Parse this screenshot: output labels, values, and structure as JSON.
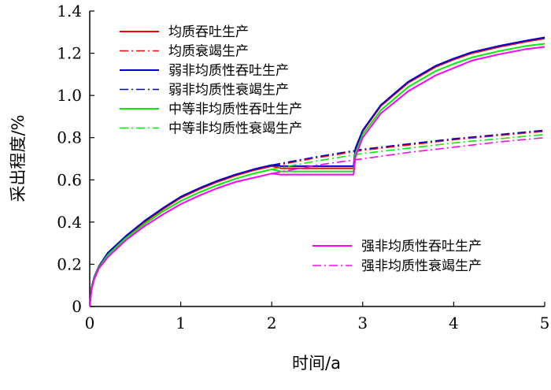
{
  "chart_data": {
    "type": "line",
    "xlabel": "时间/a",
    "ylabel": "采出程度/%",
    "xlim": [
      0,
      5
    ],
    "ylim": [
      0,
      1.4
    ],
    "x_ticks": [
      "0",
      "1",
      "2",
      "3",
      "4",
      "5"
    ],
    "y_ticks": [
      "0",
      "0.2",
      "0.4",
      "0.6",
      "0.8",
      "1.0",
      "1.2",
      "1.4"
    ],
    "grid": false,
    "legend_placement": [
      "top-left",
      "bottom-right"
    ],
    "series": [
      {
        "name": "均质吞吐生产",
        "color": "#ff0000",
        "dash": "solid",
        "x": [
          0,
          0.02,
          0.05,
          0.1,
          0.2,
          0.4,
          0.6,
          0.8,
          1.0,
          1.2,
          1.4,
          1.6,
          1.8,
          2.0,
          2.1,
          2.5,
          2.9,
          2.92,
          3.0,
          3.2,
          3.5,
          3.8,
          4.0,
          4.2,
          4.5,
          4.8,
          5.0
        ],
        "y": [
          0,
          0.09,
          0.14,
          0.19,
          0.25,
          0.33,
          0.4,
          0.46,
          0.515,
          0.555,
          0.59,
          0.62,
          0.645,
          0.665,
          0.655,
          0.655,
          0.655,
          0.74,
          0.83,
          0.95,
          1.06,
          1.135,
          1.17,
          1.2,
          1.23,
          1.255,
          1.27
        ]
      },
      {
        "name": "均质衰竭生产",
        "color": "#ff0000",
        "dash": "dashdot",
        "x": [
          2.0,
          2.5,
          3.0,
          3.5,
          4.0,
          4.5,
          5.0
        ],
        "y": [
          0.665,
          0.705,
          0.74,
          0.765,
          0.79,
          0.81,
          0.83
        ]
      },
      {
        "name": "弱非均质性吞吐生产",
        "color": "#0000cc",
        "dash": "solid",
        "x": [
          0,
          0.02,
          0.05,
          0.1,
          0.2,
          0.4,
          0.6,
          0.8,
          1.0,
          1.2,
          1.4,
          1.6,
          1.8,
          2.0,
          2.1,
          2.5,
          2.9,
          2.92,
          3.0,
          3.2,
          3.5,
          3.8,
          4.0,
          4.2,
          4.5,
          4.8,
          5.0
        ],
        "y": [
          0,
          0.09,
          0.14,
          0.19,
          0.255,
          0.335,
          0.405,
          0.465,
          0.52,
          0.56,
          0.595,
          0.625,
          0.65,
          0.67,
          0.665,
          0.665,
          0.665,
          0.75,
          0.835,
          0.955,
          1.065,
          1.14,
          1.175,
          1.205,
          1.235,
          1.26,
          1.275
        ]
      },
      {
        "name": "弱非均质性衰竭生产",
        "color": "#0000cc",
        "dash": "dashdot",
        "x": [
          2.0,
          2.5,
          3.0,
          3.5,
          4.0,
          4.5,
          5.0
        ],
        "y": [
          0.67,
          0.71,
          0.745,
          0.77,
          0.795,
          0.815,
          0.835
        ]
      },
      {
        "name": "中等非均质性吞吐生产",
        "color": "#00ee00",
        "dash": "solid",
        "x": [
          0,
          0.02,
          0.05,
          0.1,
          0.2,
          0.4,
          0.6,
          0.8,
          1.0,
          1.2,
          1.4,
          1.6,
          1.8,
          2.0,
          2.1,
          2.5,
          2.9,
          2.92,
          3.0,
          3.2,
          3.5,
          3.8,
          4.0,
          4.2,
          4.5,
          4.8,
          5.0
        ],
        "y": [
          0,
          0.085,
          0.135,
          0.185,
          0.245,
          0.325,
          0.39,
          0.45,
          0.5,
          0.54,
          0.575,
          0.605,
          0.63,
          0.65,
          0.64,
          0.64,
          0.64,
          0.725,
          0.815,
          0.93,
          1.04,
          1.115,
          1.15,
          1.18,
          1.21,
          1.235,
          1.245
        ]
      },
      {
        "name": "中等非均质性衰竭生产",
        "color": "#00ee00",
        "dash": "dashdot",
        "x": [
          2.0,
          2.5,
          3.0,
          3.5,
          4.0,
          4.5,
          5.0
        ],
        "y": [
          0.65,
          0.69,
          0.725,
          0.75,
          0.775,
          0.795,
          0.815
        ]
      },
      {
        "name": "强非均质性吞吐生产",
        "color": "#ff00ff",
        "dash": "solid",
        "x": [
          0,
          0.02,
          0.05,
          0.1,
          0.2,
          0.4,
          0.6,
          0.8,
          1.0,
          1.2,
          1.4,
          1.6,
          1.8,
          2.0,
          2.1,
          2.5,
          2.9,
          2.92,
          3.0,
          3.2,
          3.5,
          3.8,
          4.0,
          4.2,
          4.5,
          4.8,
          5.0
        ],
        "y": [
          0,
          0.08,
          0.13,
          0.18,
          0.235,
          0.315,
          0.38,
          0.435,
          0.485,
          0.525,
          0.56,
          0.59,
          0.61,
          0.63,
          0.625,
          0.625,
          0.625,
          0.71,
          0.8,
          0.915,
          1.02,
          1.095,
          1.13,
          1.165,
          1.195,
          1.22,
          1.23
        ]
      },
      {
        "name": "强非均质性衰竭生产",
        "color": "#ff00ff",
        "dash": "dashdot",
        "x": [
          2.0,
          2.5,
          3.0,
          3.5,
          4.0,
          4.5,
          5.0
        ],
        "y": [
          0.63,
          0.67,
          0.7,
          0.73,
          0.755,
          0.78,
          0.8
        ]
      }
    ]
  }
}
